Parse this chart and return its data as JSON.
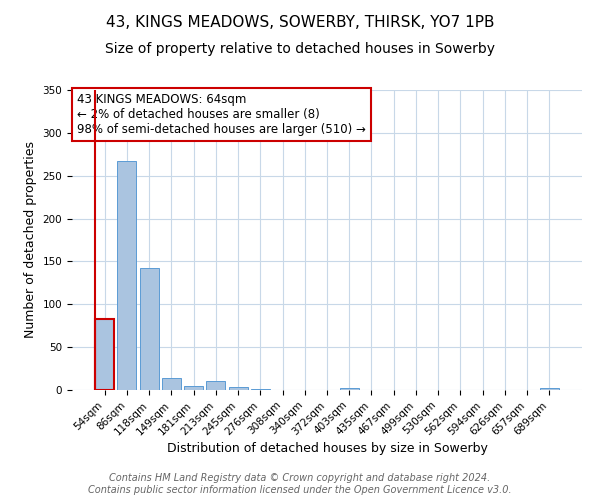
{
  "title": "43, KINGS MEADOWS, SOWERBY, THIRSK, YO7 1PB",
  "subtitle": "Size of property relative to detached houses in Sowerby",
  "xlabel": "Distribution of detached houses by size in Sowerby",
  "ylabel": "Number of detached properties",
  "bar_labels": [
    "54sqm",
    "86sqm",
    "118sqm",
    "149sqm",
    "181sqm",
    "213sqm",
    "245sqm",
    "276sqm",
    "308sqm",
    "340sqm",
    "372sqm",
    "403sqm",
    "435sqm",
    "467sqm",
    "499sqm",
    "530sqm",
    "562sqm",
    "594sqm",
    "626sqm",
    "657sqm",
    "689sqm"
  ],
  "bar_values": [
    83,
    267,
    142,
    14,
    5,
    10,
    3,
    1,
    0,
    0,
    0,
    2,
    0,
    0,
    0,
    0,
    0,
    0,
    0,
    0,
    2
  ],
  "bar_color": "#aac4e0",
  "bar_edge_color": "#5b9bd5",
  "highlight_bar_index": 0,
  "highlight_bar_edge_color": "#cc0000",
  "ylim": [
    0,
    350
  ],
  "yticks": [
    0,
    50,
    100,
    150,
    200,
    250,
    300,
    350
  ],
  "annotation_text": "43 KINGS MEADOWS: 64sqm\n← 2% of detached houses are smaller (8)\n98% of semi-detached houses are larger (510) →",
  "annotation_box_color": "#ffffff",
  "annotation_box_edge_color": "#cc0000",
  "footer_text": "Contains HM Land Registry data © Crown copyright and database right 2024.\nContains public sector information licensed under the Open Government Licence v3.0.",
  "background_color": "#ffffff",
  "grid_color": "#c8d8e8",
  "title_fontsize": 11,
  "subtitle_fontsize": 10,
  "axis_label_fontsize": 9,
  "tick_fontsize": 7.5,
  "footer_fontsize": 7,
  "annotation_fontsize": 8.5
}
